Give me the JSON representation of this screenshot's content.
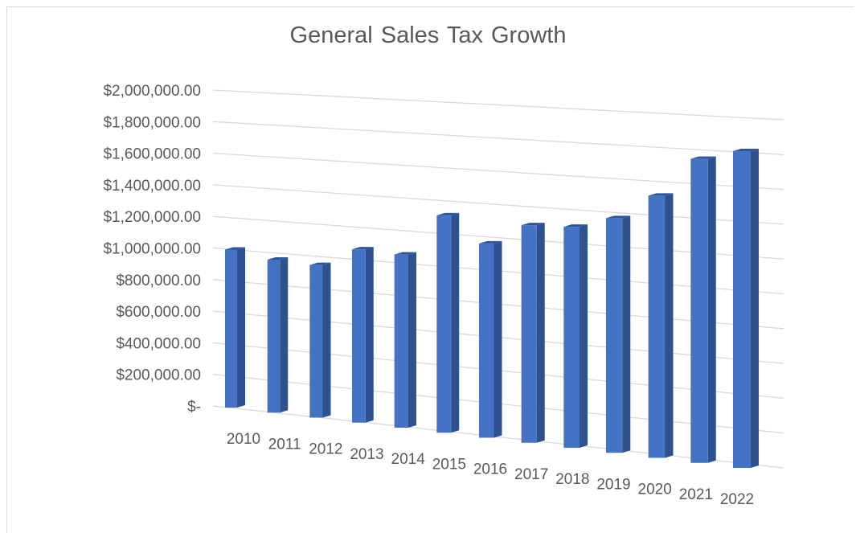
{
  "chart_data": {
    "type": "bar",
    "title": "General Sales Tax Growth",
    "xlabel": "",
    "ylabel": "",
    "categories": [
      "2010",
      "2011",
      "2012",
      "2013",
      "2014",
      "2015",
      "2016",
      "2017",
      "2018",
      "2019",
      "2020",
      "2021",
      "2022"
    ],
    "values": [
      1000000,
      960000,
      950000,
      1070000,
      1060000,
      1320000,
      1170000,
      1300000,
      1310000,
      1380000,
      1530000,
      1760000,
      1820000
    ],
    "ylim": [
      0,
      2000000
    ],
    "yticks": [
      0,
      200000,
      400000,
      600000,
      800000,
      1000000,
      1200000,
      1400000,
      1600000,
      1800000,
      2000000
    ],
    "ytick_labels": [
      "$-",
      "$200,000.00",
      "$400,000.00",
      "$600,000.00",
      "$800,000.00",
      "$1,000,000.00",
      "$1,200,000.00",
      "$1,400,000.00",
      "$1,600,000.00",
      "$1,800,000.00",
      "$2,000,000.00"
    ],
    "grid": true,
    "legend": "none",
    "bar_color": "#4472c4",
    "style": "3d-perspective"
  }
}
